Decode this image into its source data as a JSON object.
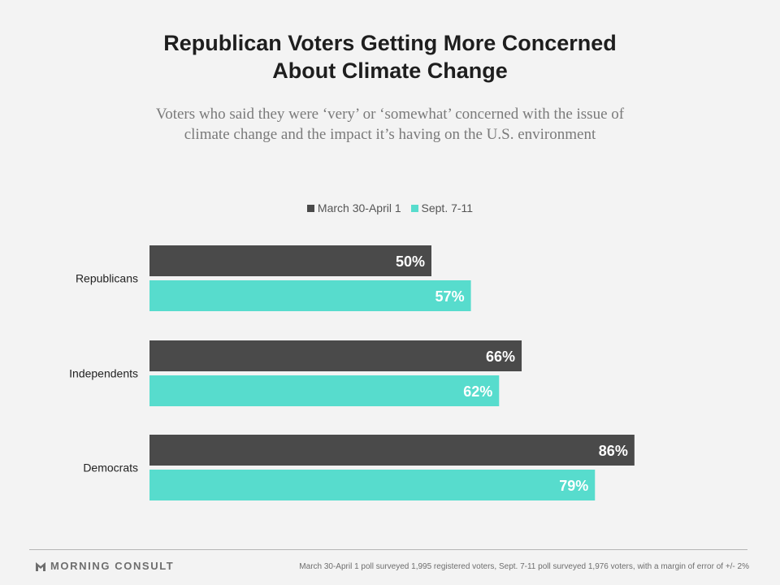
{
  "header": {
    "title_line1": "Republican Voters Getting More Concerned",
    "title_line2": "About Climate Change",
    "subtitle_line1": "Voters who said they were ‘very’ or ‘somewhat’ concerned with the issue of",
    "subtitle_line2": "climate change and the impact it’s having on the U.S. environment"
  },
  "colors": {
    "march": "#4a4a4a",
    "sept": "#57dccd",
    "background": "#f3f3f3"
  },
  "chart_data": {
    "type": "bar",
    "orientation": "horizontal",
    "categories": [
      "Republicans",
      "Independents",
      "Democrats"
    ],
    "series": [
      {
        "name": "March 30-April 1",
        "values": [
          50,
          66,
          86
        ]
      },
      {
        "name": "Sept. 7-11",
        "values": [
          57,
          62,
          79
        ]
      }
    ],
    "value_suffix": "%",
    "xlim": [
      0,
      100
    ],
    "legend_position": "top-center",
    "grid": false,
    "xlabel": "",
    "ylabel": ""
  },
  "footer": {
    "brand": "MORNING CONSULT",
    "note": "March 30-April 1 poll surveyed 1,995 registered voters, Sept. 7-11 poll surveyed 1,976 voters, with a margin of error of +/- 2%"
  }
}
